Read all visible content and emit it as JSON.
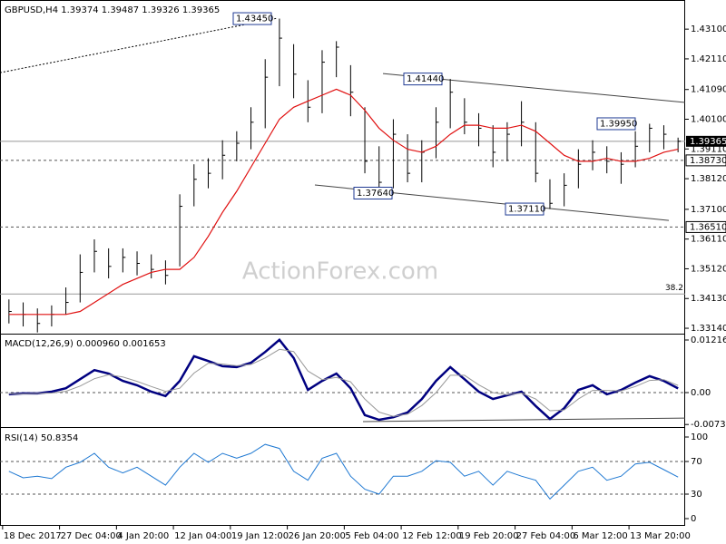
{
  "chart_data": [
    {
      "type": "ohlc",
      "title": "GBPUSD,H4 1.39374 1.39487 1.39326 1.39365",
      "watermark": "ActionForex.com",
      "categories": [
        "18 Dec 2017",
        null,
        null,
        null,
        "27 Dec 04:00",
        null,
        null,
        null,
        "4 Jan 20:00",
        null,
        null,
        null,
        "12 Jan 04:00",
        null,
        null,
        null,
        "19 Jan 12:00",
        null,
        null,
        null,
        "26 Jan 20:00",
        null,
        null,
        null,
        "5 Feb 04:00",
        null,
        null,
        null,
        "12 Feb 12:00",
        null,
        null,
        null,
        "19 Feb 20:00",
        null,
        null,
        null,
        "27 Feb 04:00",
        null,
        null,
        null,
        "6 Mar 12:00",
        null,
        null,
        null,
        "13 Mar 20:00",
        null,
        null,
        null
      ],
      "color": "#000000",
      "high": [
        1.341,
        1.34,
        1.338,
        1.339,
        1.345,
        1.356,
        1.361,
        1.358,
        1.358,
        1.357,
        1.356,
        1.354,
        1.376,
        1.386,
        1.388,
        1.394,
        1.397,
        1.405,
        1.421,
        1.4345,
        1.426,
        1.414,
        1.424,
        1.427,
        1.419,
        1.405,
        1.392,
        1.401,
        1.396,
        1.394,
        1.405,
        1.4144,
        1.408,
        1.403,
        1.399,
        1.4,
        1.407,
        1.4,
        1.381,
        1.383,
        1.391,
        1.394,
        1.392,
        1.39,
        1.397,
        1.3995,
        1.399,
        1.39487
      ],
      "low": [
        1.333,
        1.332,
        1.33,
        1.332,
        1.336,
        1.34,
        1.35,
        1.348,
        1.35,
        1.349,
        1.348,
        1.346,
        1.352,
        1.372,
        1.378,
        1.381,
        1.387,
        1.391,
        1.398,
        1.412,
        1.408,
        1.4,
        1.403,
        1.415,
        1.402,
        1.383,
        1.3764,
        1.378,
        1.38,
        1.38,
        1.388,
        1.398,
        1.396,
        1.392,
        1.385,
        1.387,
        1.392,
        1.38,
        1.3711,
        1.372,
        1.378,
        1.384,
        1.383,
        1.3795,
        1.385,
        1.39,
        1.391,
        1.39
      ],
      "close": [
        1.337,
        1.336,
        1.333,
        1.336,
        1.34,
        1.35,
        1.357,
        1.352,
        1.355,
        1.353,
        1.351,
        1.349,
        1.372,
        1.381,
        1.383,
        1.389,
        1.393,
        1.4,
        1.415,
        1.428,
        1.416,
        1.405,
        1.42,
        1.425,
        1.41,
        1.387,
        1.38,
        1.396,
        1.383,
        1.39,
        1.4,
        1.41,
        1.4,
        1.398,
        1.39,
        1.396,
        1.4,
        1.383,
        1.373,
        1.379,
        1.386,
        1.39,
        1.387,
        1.386,
        1.392,
        1.398,
        1.396,
        1.39365
      ],
      "series": [
        {
          "color": "#e01010",
          "values": [
            1.336,
            1.336,
            1.336,
            1.336,
            1.336,
            1.337,
            1.34,
            1.343,
            1.346,
            1.348,
            1.35,
            1.351,
            1.351,
            1.355,
            1.362,
            1.37,
            1.377,
            1.385,
            1.393,
            1.401,
            1.405,
            1.407,
            1.409,
            1.411,
            1.409,
            1.404,
            1.398,
            1.394,
            1.391,
            1.39,
            1.392,
            1.396,
            1.399,
            1.399,
            1.398,
            1.398,
            1.399,
            1.397,
            1.393,
            1.389,
            1.387,
            1.387,
            1.388,
            1.387,
            1.387,
            1.388,
            1.39,
            1.391
          ]
        }
      ],
      "ylim": [
        1.3296,
        1.4401
      ],
      "yticks": [
        {
          "value": 1.431,
          "label": "1.43100"
        },
        {
          "value": 1.4211,
          "label": "1.42110"
        },
        {
          "value": 1.4109,
          "label": "1.41090"
        },
        {
          "value": 1.401,
          "label": "1.40100"
        },
        {
          "value": 1.3911,
          "label": "1.39110"
        },
        {
          "value": 1.3812,
          "label": "1.38120"
        },
        {
          "value": 1.371,
          "label": "1.37100"
        },
        {
          "value": 1.3611,
          "label": "1.36110"
        },
        {
          "value": 1.3512,
          "label": "1.35120"
        },
        {
          "value": 1.3413,
          "label": "1.34130"
        },
        {
          "value": 1.3314,
          "label": "1.33140"
        }
      ],
      "levels": [
        {
          "value": 1.39365,
          "label": "1.39365",
          "line": "solid",
          "tag": "filled"
        },
        {
          "value": 1.3873,
          "label": "1.38730",
          "line": "dashed",
          "tag": "box"
        },
        {
          "value": 1.3651,
          "label": "1.36510",
          "line": "dashed",
          "tag": "box"
        },
        {
          "value": 1.3428,
          "label": "38.2",
          "line": "solid",
          "tag": "text"
        }
      ],
      "annotations": [
        {
          "value": 1.4345,
          "label": "1.43450"
        },
        {
          "value": 1.4144,
          "label": "1.41440"
        },
        {
          "value": 1.3764,
          "label": "1.37640"
        },
        {
          "value": 1.3711,
          "label": "1.37110"
        },
        {
          "value": 1.3995,
          "label": "1.39950"
        }
      ],
      "trendlines": [
        {
          "values": [
            1.4165,
            1.4346
          ],
          "style": "dashed"
        },
        {
          "values": [
            1.4162,
            1.4066
          ],
          "style": "solid"
        },
        {
          "values": [
            1.3791,
            1.3673
          ],
          "style": "solid"
        }
      ]
    },
    {
      "type": "line",
      "title": "MACD(12,26,9) 0.000960 0.001653",
      "series": [
        {
          "color": "#000080",
          "width": 2.5,
          "values": [
            -0.0004,
            -0.0002,
            -0.0002,
            0.0002,
            0.001,
            0.0031,
            0.0052,
            0.0044,
            0.0027,
            0.0017,
            0.0002,
            -0.0008,
            0.0027,
            0.0084,
            0.0073,
            0.0061,
            0.0059,
            0.0069,
            0.0094,
            0.0122,
            0.008,
            0.0006,
            0.0027,
            0.0044,
            0.001,
            -0.0052,
            -0.0063,
            -0.0057,
            -0.0046,
            -0.0015,
            0.0027,
            0.0059,
            0.0031,
            0.0002,
            -0.0015,
            -0.0006,
            0.0002,
            -0.0031,
            -0.0061,
            -0.0036,
            0.0006,
            0.0017,
            -0.0004,
            0.0006,
            0.0023,
            0.0038,
            0.0027,
            0.00096
          ]
        },
        {
          "color": "#999999",
          "width": 1,
          "values": [
            -0.0003,
            -0.0003,
            -0.0002,
            -0.0001,
            0.0003,
            0.0015,
            0.0032,
            0.0041,
            0.0036,
            0.0026,
            0.0014,
            0.0003,
            0.001,
            0.0045,
            0.0068,
            0.0066,
            0.0062,
            0.0065,
            0.008,
            0.01,
            0.0095,
            0.005,
            0.003,
            0.0035,
            0.0025,
            -0.0015,
            -0.0045,
            -0.0055,
            -0.005,
            -0.003,
            0.0,
            0.004,
            0.004,
            0.0018,
            0.0,
            -0.0005,
            -0.0001,
            -0.0015,
            -0.0042,
            -0.004,
            -0.0015,
            0.0005,
            0.0005,
            0.0004,
            0.0014,
            0.0028,
            0.003,
            0.001653
          ]
        }
      ],
      "ylim": [
        -0.00776,
        0.01321
      ],
      "yticks": [
        0.012164,
        {
          "value": 0,
          "label": "0.00"
        },
        -0.007384
      ],
      "levels": [
        {
          "value": 0,
          "line": "dashed"
        }
      ],
      "trendlines": [
        {
          "values": [
            -0.0067,
            -0.0059
          ],
          "style": "solid"
        }
      ]
    },
    {
      "type": "line",
      "title": "RSI(14) 50.8354",
      "series": [
        {
          "color": "#1e78d2",
          "width": 1,
          "values": [
            58,
            50,
            52,
            49,
            63,
            69,
            80,
            63,
            56,
            63,
            52,
            41,
            63,
            80,
            69,
            80,
            74,
            80,
            91,
            86,
            58,
            47,
            74,
            80,
            52,
            36,
            30,
            52,
            52,
            58,
            71,
            69,
            52,
            58,
            41,
            58,
            52,
            47,
            24,
            41,
            58,
            63,
            47,
            52,
            67,
            69,
            60,
            50.8354
          ]
        }
      ],
      "ylim": [
        -8.9,
        108.9
      ],
      "yticks": [
        100,
        70,
        30,
        0
      ],
      "levels": [
        {
          "value": 70,
          "line": "dashed"
        },
        {
          "value": 30,
          "line": "dashed"
        }
      ]
    }
  ]
}
